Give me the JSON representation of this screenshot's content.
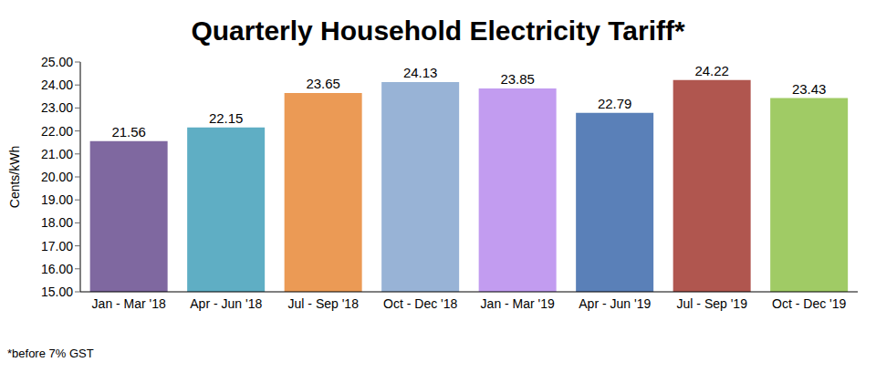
{
  "chart_data": {
    "type": "bar",
    "title": "Quarterly Household Electricity Tariff*",
    "y_label": "Cents/kWh",
    "annotation": "*before 7% GST",
    "categories": [
      "Jan - Mar '18",
      "Apr - Jun '18",
      "Jul - Sep '18",
      "Oct - Dec '18",
      "Jan - Mar '19",
      "Apr - Jun '19",
      "Jul - Sep '19",
      "Oct - Dec '19"
    ],
    "values": [
      21.56,
      22.15,
      23.65,
      24.13,
      23.85,
      22.79,
      24.22,
      23.43
    ],
    "colors": [
      "#7f68a0",
      "#5faec4",
      "#eb9a55",
      "#98b3d6",
      "#c29cf0",
      "#5a80b8",
      "#b0564f",
      "#a0cb65"
    ],
    "ylim": [
      15,
      25
    ],
    "yticks": [
      {
        "value": 15,
        "label": "15.00"
      },
      {
        "value": 16,
        "label": "16.00"
      },
      {
        "value": 17,
        "label": "17.00"
      },
      {
        "value": 18,
        "label": "18.00"
      },
      {
        "value": 19,
        "label": "19.00"
      },
      {
        "value": 20,
        "label": "20.00"
      },
      {
        "value": 21,
        "label": "21.00"
      },
      {
        "value": 22,
        "label": "22.00"
      },
      {
        "value": 23,
        "label": "23.00"
      },
      {
        "value": 24,
        "label": "24.00"
      },
      {
        "value": 25,
        "label": "25.00"
      }
    ],
    "grid": false,
    "data_labels": true
  }
}
